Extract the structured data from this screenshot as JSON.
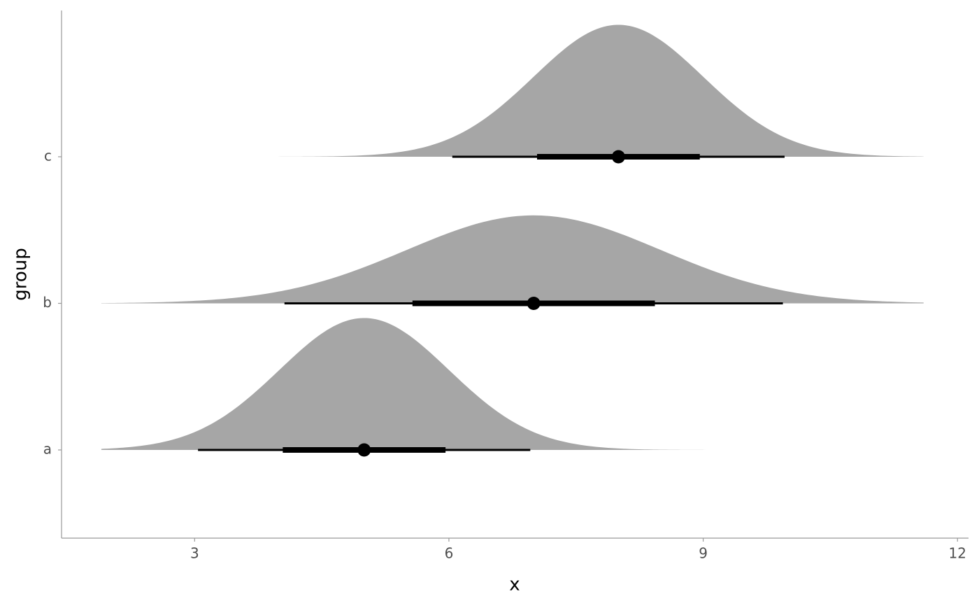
{
  "chart_data": {
    "type": "halfeye",
    "x_label": "x",
    "y_label": "group",
    "categories": [
      "a",
      "b",
      "c"
    ],
    "color": "#a6a6a6",
    "point_color": "#000000",
    "groups": [
      {
        "mean": 5,
        "sd": 1,
        "density_range": [
          1.9,
          9.1
        ],
        "interval_66": [
          4.04,
          5.96
        ],
        "interval_95": [
          3.04,
          6.96
        ]
      },
      {
        "mean": 7,
        "sd": 1.5,
        "density_range": [
          1.9,
          11.6
        ],
        "interval_66": [
          5.57,
          8.43
        ],
        "interval_95": [
          4.06,
          9.94
        ]
      },
      {
        "mean": 8,
        "sd": 1,
        "density_range": [
          3.9,
          11.6
        ],
        "interval_66": [
          7.04,
          8.96
        ],
        "interval_95": [
          6.04,
          9.96
        ]
      }
    ],
    "xlim": [
      1.43,
      12.13
    ],
    "xticks": [
      3,
      6,
      9,
      12
    ]
  }
}
